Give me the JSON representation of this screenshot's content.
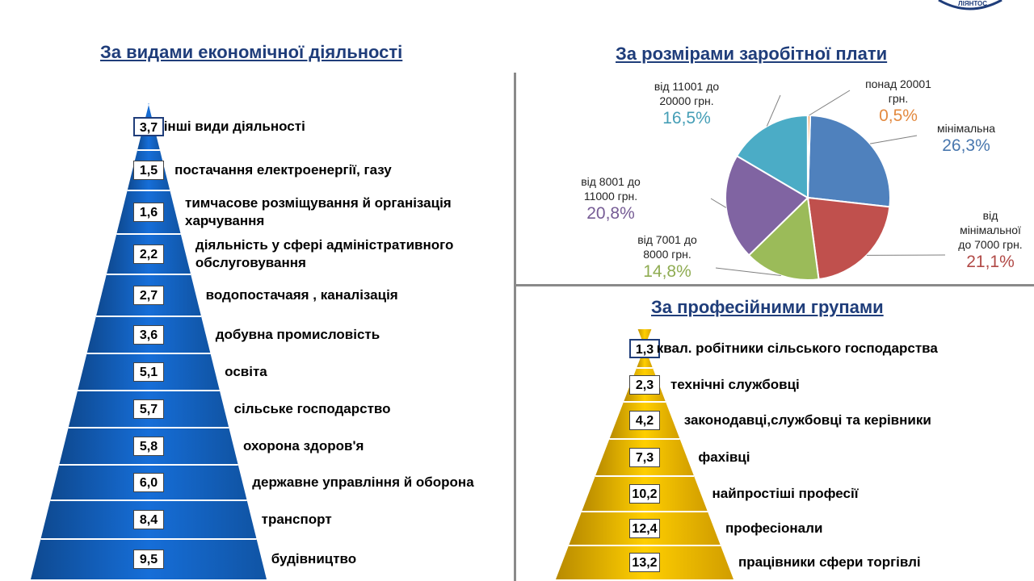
{
  "header": {
    "logo_text": "ЛІЯНТОС"
  },
  "left_panel": {
    "title": "За видами економічної діяльності"
  },
  "pie_panel": {
    "title": "За розмірами заробітної плати"
  },
  "right_panel": {
    "title": "За професійними групами"
  },
  "chart_data": [
    {
      "type": "bar",
      "shape": "pyramid",
      "title": "За видами економічної діяльності",
      "color": "#1466c8",
      "categories": [
        "інші види діяльності",
        "постачання електроенергії, газу",
        "тимчасове розміщування й організація харчування",
        "діяльність у сфері адміністративного обслуговування",
        "водопостачаяя , каналізація",
        "добувна промисловість",
        "освіта",
        "сільське господарство",
        "охорона здоров'я",
        "державне управління й оборона",
        "транспорт",
        "будівництво"
      ],
      "labels": [
        [
          "інші види діяльності"
        ],
        [
          "постачання електроенергії, газу"
        ],
        [
          "тимчасове розміщування й організація",
          "харчування"
        ],
        [
          "діяльність у сфері адміністративного",
          "обслуговування"
        ],
        [
          "водопостачаяя , каналізація"
        ],
        [
          "добувна промисловість"
        ],
        [
          "освіта"
        ],
        [
          "сільське господарство"
        ],
        [
          "охорона здоров'я"
        ],
        [
          "державне управління й оборона"
        ],
        [
          "транспорт"
        ],
        [
          "будівництво"
        ]
      ],
      "value_labels": [
        "3,7",
        "1,5",
        "1,6",
        "2,2",
        "2,7",
        "3,6",
        "5,1",
        "5,7",
        "5,8",
        "6,0",
        "8,4",
        "9,5"
      ],
      "values": [
        3.7,
        1.5,
        1.6,
        2.2,
        2.7,
        3.6,
        5.1,
        5.7,
        5.8,
        6.0,
        8.4,
        9.5
      ]
    },
    {
      "type": "pie",
      "title": "За розмірами заробітної плати",
      "slices": [
        {
          "label": [
            "мінімальна"
          ],
          "pct": "26,3%",
          "value": 26.3,
          "color": "#4f81bd"
        },
        {
          "label": [
            "від",
            "мінімальної",
            "до 7000 грн."
          ],
          "pct": "21,1%",
          "value": 21.1,
          "color": "#c0504d"
        },
        {
          "label": [
            "від 7001  до",
            "8000 грн."
          ],
          "pct": "14,8%",
          "value": 14.8,
          "color": "#9bbb59"
        },
        {
          "label": [
            "від 8001  до",
            "11000 грн."
          ],
          "pct": "20,8%",
          "value": 20.8,
          "color": "#8064a2"
        },
        {
          "label": [
            "від 11001  до",
            "20000 грн."
          ],
          "pct": "16,5%",
          "value": 16.5,
          "color": "#4bacc6"
        },
        {
          "label": [
            "понад 20001",
            "грн."
          ],
          "pct": "0,5%",
          "value": 0.5,
          "color": "#f79646"
        }
      ]
    },
    {
      "type": "bar",
      "shape": "pyramid",
      "title": "За професійними групами",
      "color": "#ffc000",
      "categories": [
        "квал. робітники сільського господарства",
        "технічні службовці",
        "законодавці,службовці та керівники",
        "фахівці",
        "найпростіші професії",
        "професіонали",
        "працівники сфери торгівлі"
      ],
      "value_labels": [
        "1,3",
        "2,3",
        "4,2",
        "7,3",
        "10,2",
        "12,4",
        "13,2"
      ],
      "values": [
        1.3,
        2.3,
        4.2,
        7.3,
        10.2,
        12.4,
        13.2
      ]
    }
  ]
}
